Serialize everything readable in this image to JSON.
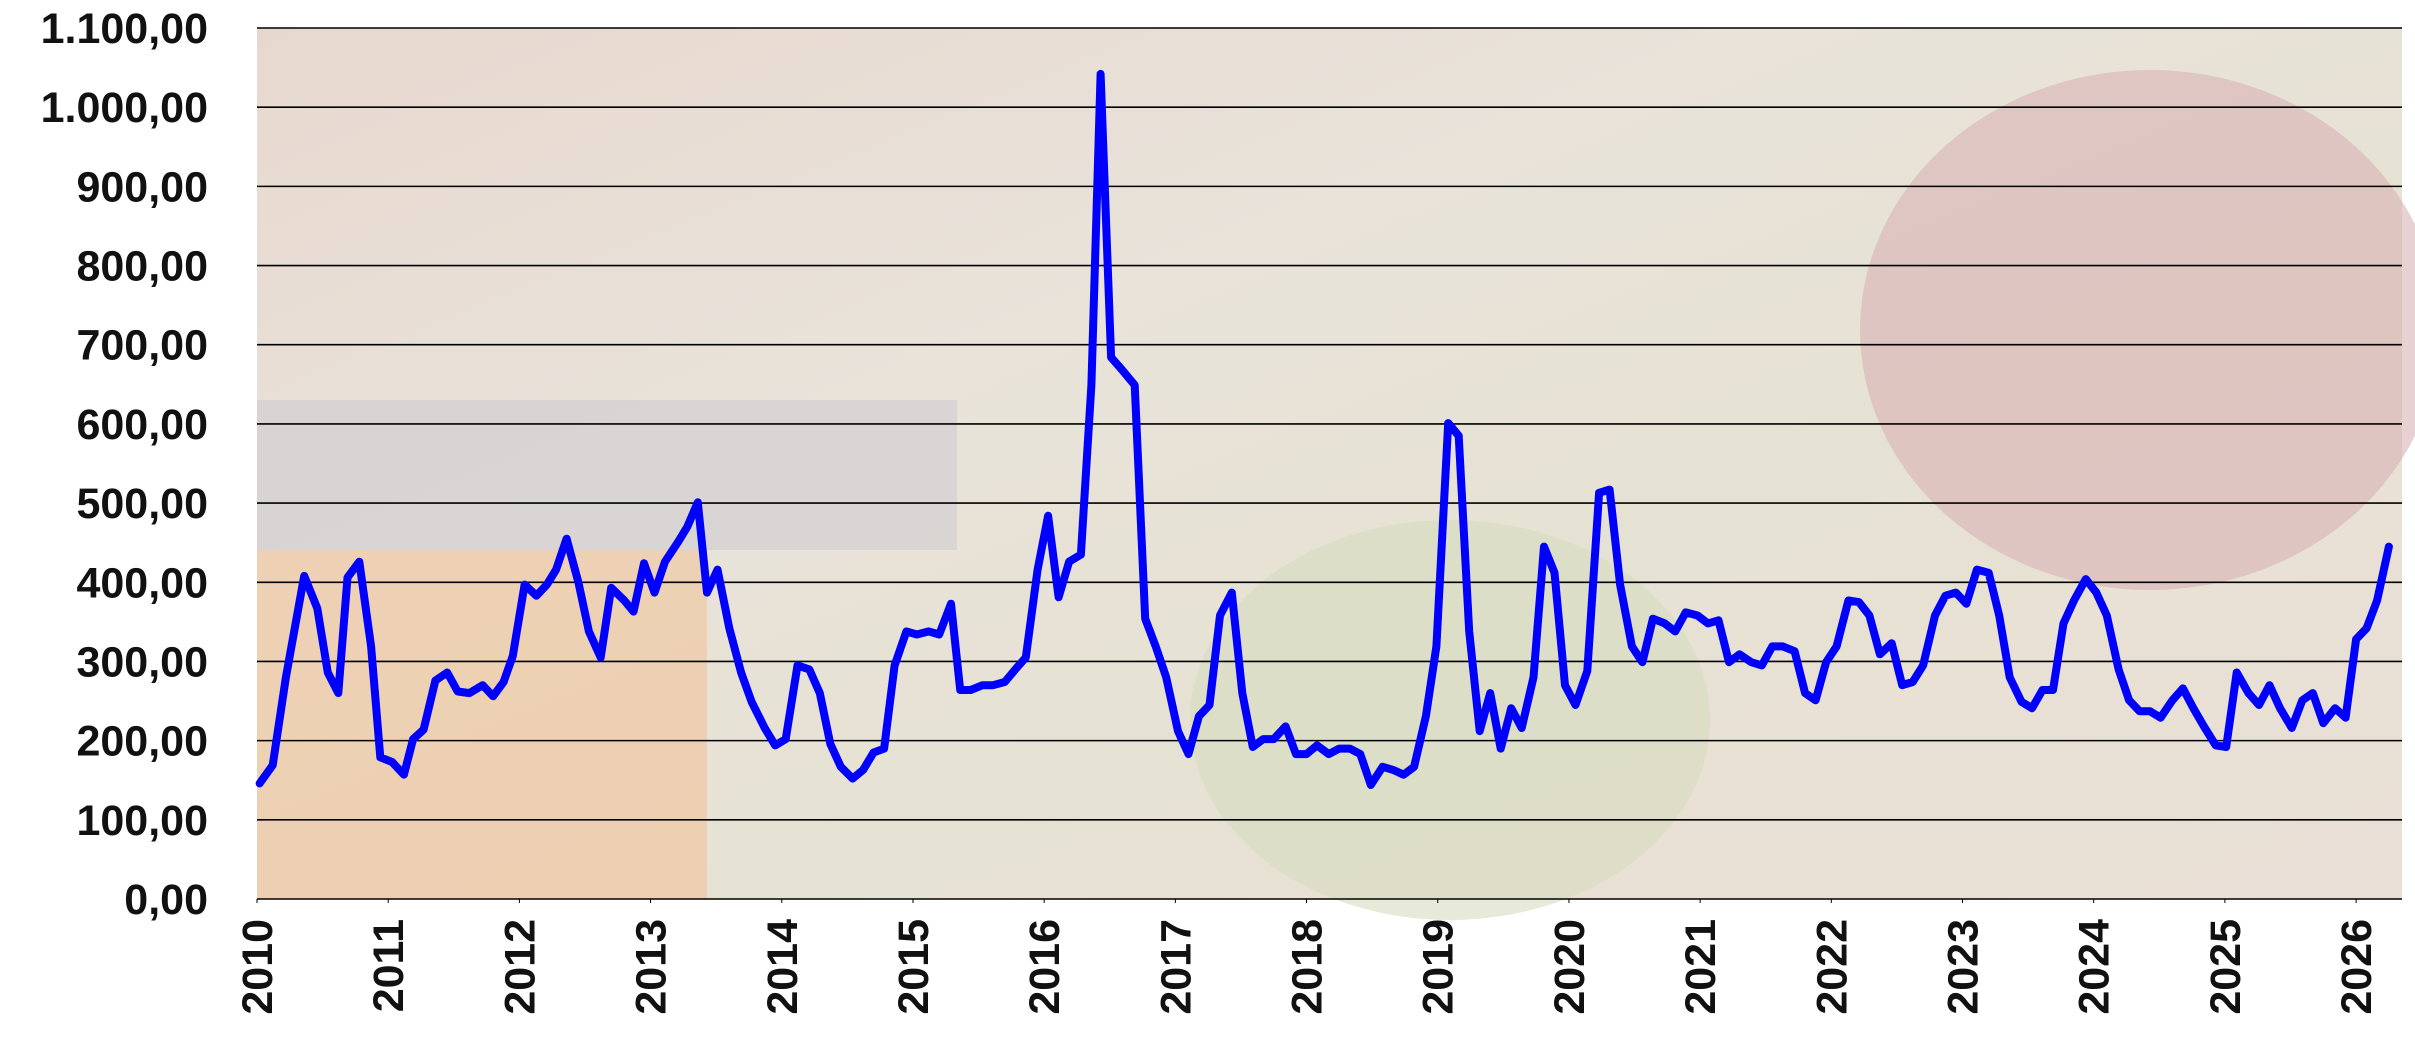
{
  "chart_data": {
    "type": "line",
    "x": [
      2010.02,
      2010.12,
      2010.22,
      2010.36,
      2010.46,
      2010.54,
      2010.62,
      2010.69,
      2010.78,
      2010.87,
      2010.94,
      2011.03,
      2011.12,
      2011.19,
      2011.27,
      2011.36,
      2011.45,
      2011.53,
      2011.62,
      2011.72,
      2011.8,
      2011.88,
      2011.95,
      2012.04,
      2012.13,
      2012.21,
      2012.28,
      2012.36,
      2012.45,
      2012.53,
      2012.62,
      2012.7,
      2012.8,
      2012.87,
      2012.95,
      2013.03,
      2013.11,
      2013.21,
      2013.28,
      2013.36,
      2013.43,
      2013.51,
      2013.6,
      2013.69,
      2013.77,
      2013.87,
      2013.95,
      2014.03,
      2014.12,
      2014.21,
      2014.29,
      2014.37,
      2014.45,
      2014.54,
      2014.62,
      2014.7,
      2014.78,
      2014.86,
      2014.95,
      2015.03,
      2015.12,
      2015.2,
      2015.29,
      2015.36,
      2015.44,
      2015.53,
      2015.61,
      2015.7,
      2015.78,
      2015.86,
      2015.95,
      2016.03,
      2016.11,
      2016.19,
      2016.28,
      2016.36,
      2016.43,
      2016.51,
      2016.59,
      2016.69,
      2016.77,
      2016.85,
      2016.93,
      2017.02,
      2017.1,
      2017.18,
      2017.26,
      2017.34,
      2017.43,
      2017.51,
      2017.59,
      2017.67,
      2017.75,
      2017.84,
      2017.92,
      2018.0,
      2018.08,
      2018.17,
      2018.25,
      2018.33,
      2018.41,
      2018.49,
      2018.58,
      2018.66,
      2018.74,
      2018.82,
      2018.91,
      2018.99,
      2019.08,
      2019.16,
      2019.24,
      2019.32,
      2019.4,
      2019.48,
      2019.56,
      2019.64,
      2019.73,
      2019.81,
      2019.89,
      2019.97,
      2020.05,
      2020.14,
      2020.23,
      2020.31,
      2020.39,
      2020.48,
      2020.56,
      2020.64,
      2020.73,
      2020.81,
      2020.89,
      2020.98,
      2021.06,
      2021.14,
      2021.22,
      2021.3,
      2021.39,
      2021.47,
      2021.55,
      2021.63,
      2021.72,
      2021.8,
      2021.88,
      2021.96,
      2022.04,
      2022.13,
      2022.21,
      2022.29,
      2022.37,
      2022.46,
      2022.54,
      2022.62,
      2022.7,
      2022.79,
      2022.87,
      2022.95,
      2023.03,
      2023.11,
      2023.2,
      2023.28,
      2023.36,
      2023.45,
      2023.53,
      2023.61,
      2023.69,
      2023.77,
      2023.85,
      2023.94,
      2024.02,
      2024.1,
      2024.19,
      2024.27,
      2024.35,
      2024.43,
      2024.51,
      2024.6,
      2024.68,
      2024.76,
      2024.84,
      2024.93,
      2025.01,
      2025.09,
      2025.18,
      2025.26,
      2025.34,
      2025.42,
      2025.51,
      2025.59,
      2025.67,
      2025.75,
      2025.84,
      2025.92,
      2026.0,
      2026.08,
      2026.16,
      2026.25
    ],
    "series": [
      {
        "color": "#0000ff",
        "values": [
          146,
          169,
          280,
          408,
          367,
          286,
          260,
          406,
          426,
          319,
          179,
          173,
          157,
          202,
          214,
          276,
          286,
          262,
          260,
          270,
          256,
          274,
          307,
          397,
          383,
          397,
          416,
          455,
          400,
          338,
          305,
          393,
          377,
          363,
          424,
          387,
          426,
          451,
          470,
          501,
          387,
          416,
          342,
          286,
          249,
          216,
          194,
          202,
          295,
          290,
          260,
          196,
          167,
          152,
          163,
          185,
          190,
          295,
          338,
          334,
          338,
          334,
          373,
          264,
          264,
          270,
          270,
          274,
          290,
          305,
          416,
          484,
          381,
          426,
          435,
          649,
          1042,
          684,
          669,
          649,
          354,
          319,
          280,
          212,
          183,
          231,
          245,
          358,
          387,
          260,
          192,
          202,
          202,
          218,
          183,
          183,
          194,
          183,
          190,
          190,
          183,
          144,
          167,
          163,
          157,
          167,
          231,
          319,
          601,
          585,
          338,
          212,
          260,
          190,
          241,
          216,
          280,
          445,
          412,
          270,
          245,
          288,
          513,
          517,
          397,
          319,
          299,
          354,
          348,
          338,
          362,
          358,
          348,
          352,
          299,
          309,
          299,
          295,
          319,
          319,
          313,
          260,
          251,
          299,
          319,
          377,
          375,
          358,
          309,
          323,
          270,
          274,
          295,
          358,
          383,
          387,
          373,
          416,
          412,
          358,
          280,
          249,
          241,
          264,
          264,
          348,
          377,
          404,
          387,
          358,
          290,
          251,
          237,
          237,
          229,
          251,
          266,
          241,
          218,
          194,
          192,
          286,
          260,
          245,
          270,
          241,
          216,
          251,
          260,
          222,
          241,
          229,
          328,
          342,
          377,
          445
        ]
      }
    ],
    "xlim": [
      2010,
      2026.35
    ],
    "xticks": [
      2010,
      2011,
      2012,
      2013,
      2014,
      2015,
      2016,
      2017,
      2018,
      2019,
      2020,
      2021,
      2022,
      2023,
      2024,
      2025,
      2026
    ],
    "ylim": [
      0,
      1100
    ],
    "yticks": [
      {
        "value": 0,
        "label": "0,00"
      },
      {
        "value": 100,
        "label": "100,00"
      },
      {
        "value": 200,
        "label": "200,00"
      },
      {
        "value": 300,
        "label": "300,00"
      },
      {
        "value": 400,
        "label": "400,00"
      },
      {
        "value": 500,
        "label": "500,00"
      },
      {
        "value": 600,
        "label": "600,00"
      },
      {
        "value": 700,
        "label": "700,00"
      },
      {
        "value": 800,
        "label": "800,00"
      },
      {
        "value": 900,
        "label": "900,00"
      },
      {
        "value": 1000,
        "label": "1.000,00"
      },
      {
        "value": 1100,
        "label": "1.100,00"
      }
    ],
    "grid": true
  }
}
